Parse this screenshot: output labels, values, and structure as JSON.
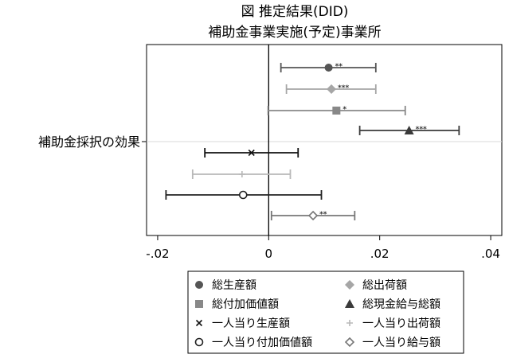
{
  "chart_data": {
    "type": "scatter",
    "subtype": "coefficient-plot",
    "title": "図 推定結果(DID)",
    "subtitle": "補助金事業実施(予定)事業所",
    "ylabel": "補助金採択の効果",
    "xlabel": "",
    "xlim": [
      -0.022,
      0.042
    ],
    "x_ticks": [
      -0.02,
      0,
      0.02,
      0.04
    ],
    "x_tick_labels": [
      "-.02",
      "0",
      ".02",
      ".04"
    ],
    "reference_line_x": 0,
    "grid": false,
    "legend_position": "bottom",
    "series": [
      {
        "name": "総生産額",
        "marker": "circle-filled",
        "color": "#555555",
        "estimate": 0.0108,
        "ci": [
          0.0022,
          0.0193
        ],
        "stars": "**"
      },
      {
        "name": "総出荷額",
        "marker": "diamond-filled",
        "color": "#a6a6a6",
        "estimate": 0.0113,
        "ci": [
          0.0032,
          0.0193
        ],
        "stars": "***"
      },
      {
        "name": "総付加価値額",
        "marker": "square-filled",
        "color": "#888888",
        "estimate": 0.0122,
        "ci": [
          -0.0001,
          0.0246
        ],
        "stars": "*"
      },
      {
        "name": "総現金給与総額",
        "marker": "triangle-filled",
        "color": "#3a3a3a",
        "estimate": 0.0253,
        "ci": [
          0.0164,
          0.0343
        ],
        "stars": "***"
      },
      {
        "name": "一人当り生産額",
        "marker": "x",
        "color": "#111111",
        "estimate": -0.0031,
        "ci": [
          -0.0115,
          0.0053
        ],
        "stars": ""
      },
      {
        "name": "一人当り出荷額",
        "marker": "plus",
        "color": "#b8b8b8",
        "estimate": -0.0048,
        "ci": [
          -0.0137,
          0.0039
        ],
        "stars": ""
      },
      {
        "name": "一人当り付加価値額",
        "marker": "circle-open",
        "color": "#222222",
        "estimate": -0.0046,
        "ci": [
          -0.0185,
          0.0095
        ],
        "stars": ""
      },
      {
        "name": "一人当り給与額",
        "marker": "diamond-open",
        "color": "#777777",
        "estimate": 0.008,
        "ci": [
          0.0005,
          0.0155
        ],
        "stars": "**"
      }
    ]
  }
}
